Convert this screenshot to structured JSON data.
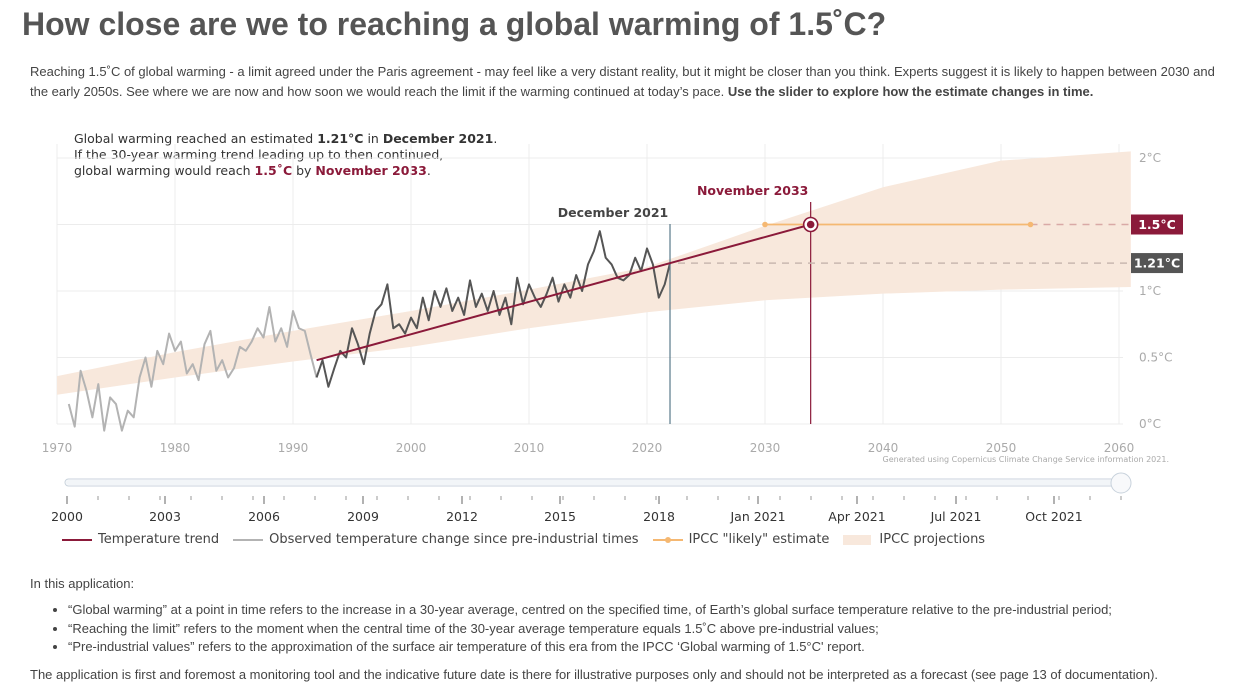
{
  "title": "How close are we to reaching a global warming of 1.5˚C?",
  "intro": {
    "text": "Reaching 1.5˚C of global warming - a limit agreed under the Paris agreement - may feel like a very distant reality, but it might be closer than you think. Experts suggest it is likely to happen between 2030 and the early 2050s. See where we are now and how soon we would reach the limit if the warming continued at today’s pace. ",
    "bold": "Use the slider to explore how the estimate changes in time."
  },
  "info": {
    "l1a": "Global warming reached an estimated ",
    "l1b": "1.21°C",
    "l1c": " in ",
    "l1d": "December 2021",
    "l1e": ".",
    "l2": "If the 30-year warming trend leading up to then continued,",
    "l3a": "global warming would reach ",
    "l3b": "1.5˚C",
    "l3c": " by ",
    "l3d": "November 2033",
    "l3e": "."
  },
  "credit": "Generated using Copernicus Climate Change Service information 2021.",
  "colors": {
    "trend": "#8b1a3a",
    "observed_old": "#b3b3b3",
    "observed_recent": "#555555",
    "likely": "#f5b872",
    "projection": "#f8e8dc",
    "badge_red": "#8b1a3a",
    "badge_grey": "#555555"
  },
  "chart_data": {
    "type": "line",
    "x_axis": {
      "range": [
        1970,
        2060
      ],
      "ticks": [
        1970,
        1980,
        1990,
        2000,
        2010,
        2020,
        2030,
        2040,
        2050,
        2060
      ]
    },
    "y_axis": {
      "range": [
        -0.1,
        2.05
      ],
      "ticks": [
        0,
        0.5,
        1,
        1.5,
        2
      ],
      "tick_labels": [
        "0°C",
        "0.5°C",
        "1°C",
        "1.5°C",
        "2°C"
      ],
      "side": "right"
    },
    "grid": true,
    "current": {
      "date_label": "December 2021",
      "year": 2021.95,
      "value": 1.21,
      "value_label": "1.21°C"
    },
    "target": {
      "date_label": "November 2033",
      "year": 2033.87,
      "value": 1.5,
      "value_label": "1.5°C"
    },
    "trend": {
      "name": "Temperature trend",
      "x": [
        1992,
        2033.87
      ],
      "y": [
        0.48,
        1.5
      ]
    },
    "likely": {
      "name": "IPCC \"likely\" estimate",
      "x_start": 2030,
      "x_end": 2052.5,
      "y": 1.5
    },
    "projection": {
      "name": "IPCC projections",
      "x": [
        1970,
        1980,
        1990,
        2000,
        2010,
        2020,
        2030,
        2040,
        2050,
        2061
      ],
      "upper": [
        0.36,
        0.54,
        0.7,
        0.85,
        1.01,
        1.18,
        1.49,
        1.78,
        1.98,
        2.05
      ],
      "lower": [
        0.22,
        0.35,
        0.47,
        0.58,
        0.72,
        0.84,
        0.93,
        0.98,
        1.01,
        1.03
      ]
    },
    "observed": {
      "name": "Observed temperature change since pre-industrial times",
      "split_year": 1992,
      "x": [
        1971,
        1971.5,
        1972,
        1972.5,
        1973,
        1973.5,
        1974,
        1974.5,
        1975,
        1975.5,
        1976,
        1976.5,
        1977,
        1977.5,
        1978,
        1978.5,
        1979,
        1979.5,
        1980,
        1980.5,
        1981,
        1981.5,
        1982,
        1982.5,
        1983,
        1983.5,
        1984,
        1984.5,
        1985,
        1985.5,
        1986,
        1986.5,
        1987,
        1987.5,
        1988,
        1988.5,
        1989,
        1989.5,
        1990,
        1990.5,
        1991,
        1991.5,
        1992,
        1992.5,
        1993,
        1993.5,
        1994,
        1994.5,
        1995,
        1995.5,
        1996,
        1996.5,
        1997,
        1997.5,
        1998,
        1998.5,
        1999,
        1999.5,
        2000,
        2000.5,
        2001,
        2001.5,
        2002,
        2002.5,
        2003,
        2003.5,
        2004,
        2004.5,
        2005,
        2005.5,
        2006,
        2006.5,
        2007,
        2007.5,
        2008,
        2008.5,
        2009,
        2009.5,
        2010,
        2010.5,
        2011,
        2011.5,
        2012,
        2012.5,
        2013,
        2013.5,
        2014,
        2014.5,
        2015,
        2015.5,
        2016,
        2016.5,
        2017,
        2017.5,
        2018,
        2018.5,
        2019,
        2019.5,
        2020,
        2020.5,
        2021,
        2021.5,
        2021.95
      ],
      "y": [
        0.15,
        -0.02,
        0.4,
        0.25,
        0.05,
        0.3,
        -0.05,
        0.2,
        0.15,
        -0.05,
        0.1,
        0.05,
        0.35,
        0.5,
        0.28,
        0.55,
        0.45,
        0.68,
        0.55,
        0.62,
        0.38,
        0.45,
        0.33,
        0.6,
        0.7,
        0.4,
        0.48,
        0.35,
        0.42,
        0.58,
        0.55,
        0.62,
        0.72,
        0.65,
        0.88,
        0.62,
        0.72,
        0.58,
        0.85,
        0.72,
        0.7,
        0.52,
        0.35,
        0.48,
        0.28,
        0.42,
        0.55,
        0.5,
        0.72,
        0.6,
        0.45,
        0.68,
        0.85,
        0.9,
        1.05,
        0.72,
        0.75,
        0.68,
        0.8,
        0.72,
        0.95,
        0.78,
        1.0,
        0.88,
        1.02,
        0.85,
        0.95,
        0.82,
        1.08,
        0.88,
        0.98,
        0.85,
        1.0,
        0.82,
        0.95,
        0.75,
        1.1,
        0.9,
        1.05,
        0.95,
        0.88,
        0.98,
        1.1,
        0.92,
        1.05,
        0.95,
        1.12,
        1.0,
        1.2,
        1.3,
        1.45,
        1.25,
        1.2,
        1.1,
        1.08,
        1.12,
        1.25,
        1.15,
        1.32,
        1.2,
        0.95,
        1.05,
        1.21
      ]
    },
    "slider": {
      "ticks": [
        "2000",
        "2003",
        "2006",
        "2009",
        "2012",
        "2015",
        "2018",
        "Jan 2021",
        "Apr 2021",
        "Jul 2021",
        "Oct 2021"
      ]
    }
  },
  "legend": [
    {
      "label": "Temperature trend",
      "kind": "line",
      "color": "#8b1a3a"
    },
    {
      "label": "Observed temperature change since pre-industrial times",
      "kind": "line",
      "color": "#b3b3b3"
    },
    {
      "label": "IPCC \"likely\" estimate",
      "kind": "dotline",
      "color": "#f5b872"
    },
    {
      "label": "IPCC projections",
      "kind": "band",
      "color": "#f8e8dc"
    }
  ],
  "notes": {
    "head": "In this application:",
    "items": [
      "“Global warming” at a point in time refers to the increase in a 30-year average, centred on the specified time, of Earth’s global surface temperature relative to the pre-industrial period;",
      "“Reaching the limit” refers to the moment when the central time of the 30-year average temperature equals 1.5˚C above pre-industrial values;",
      "“Pre-industrial values” refers to the approximation of the surface air temperature of this era from the IPCC ‘Global warming of 1.5°C' report."
    ],
    "foot": "The application is first and foremost a monitoring tool and the indicative future date is there for illustrative purposes only and should not be interpreted as a forecast (see page 13 of documentation)."
  }
}
